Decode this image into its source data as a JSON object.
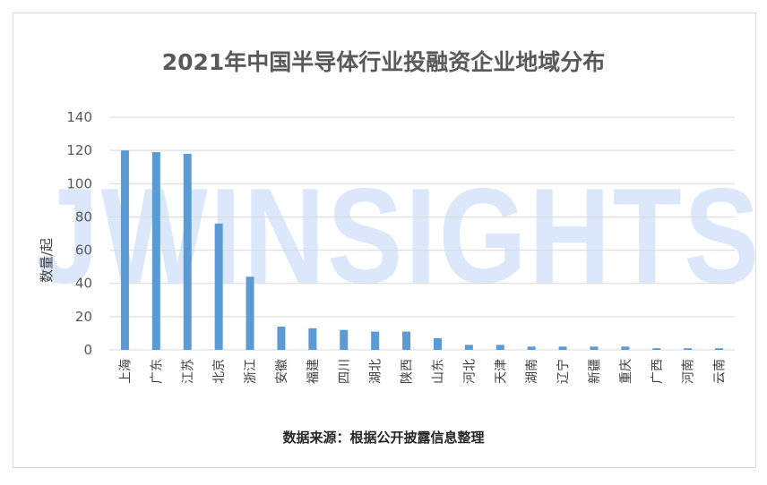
{
  "title": "2021年中国半导体行业投融资企业地域分布",
  "source": "数据来源：根据公开披露信息整理",
  "watermark": "JWINSIGHTS",
  "colors": {
    "bar": "#5b9bd5",
    "grid": "#d9d9d9",
    "watermark": "#dbe8fb"
  },
  "chart_data": {
    "type": "bar",
    "title": "2021年中国半导体行业投融资企业地域分布",
    "xlabel": "",
    "ylabel": "数量/起",
    "ylim": [
      0,
      140
    ],
    "yticks": [
      0,
      20,
      40,
      60,
      80,
      100,
      120,
      140
    ],
    "grid": true,
    "categories": [
      "上海",
      "广东",
      "江苏",
      "北京",
      "浙江",
      "安徽",
      "福建",
      "四川",
      "湖北",
      "陕西",
      "山东",
      "河北",
      "天津",
      "湖南",
      "辽宁",
      "新疆",
      "重庆",
      "广西",
      "河南",
      "云南"
    ],
    "values": [
      120,
      119,
      118,
      76,
      44,
      14,
      13,
      12,
      11,
      11,
      7,
      3,
      3,
      2,
      2,
      2,
      2,
      1,
      1,
      1
    ]
  }
}
